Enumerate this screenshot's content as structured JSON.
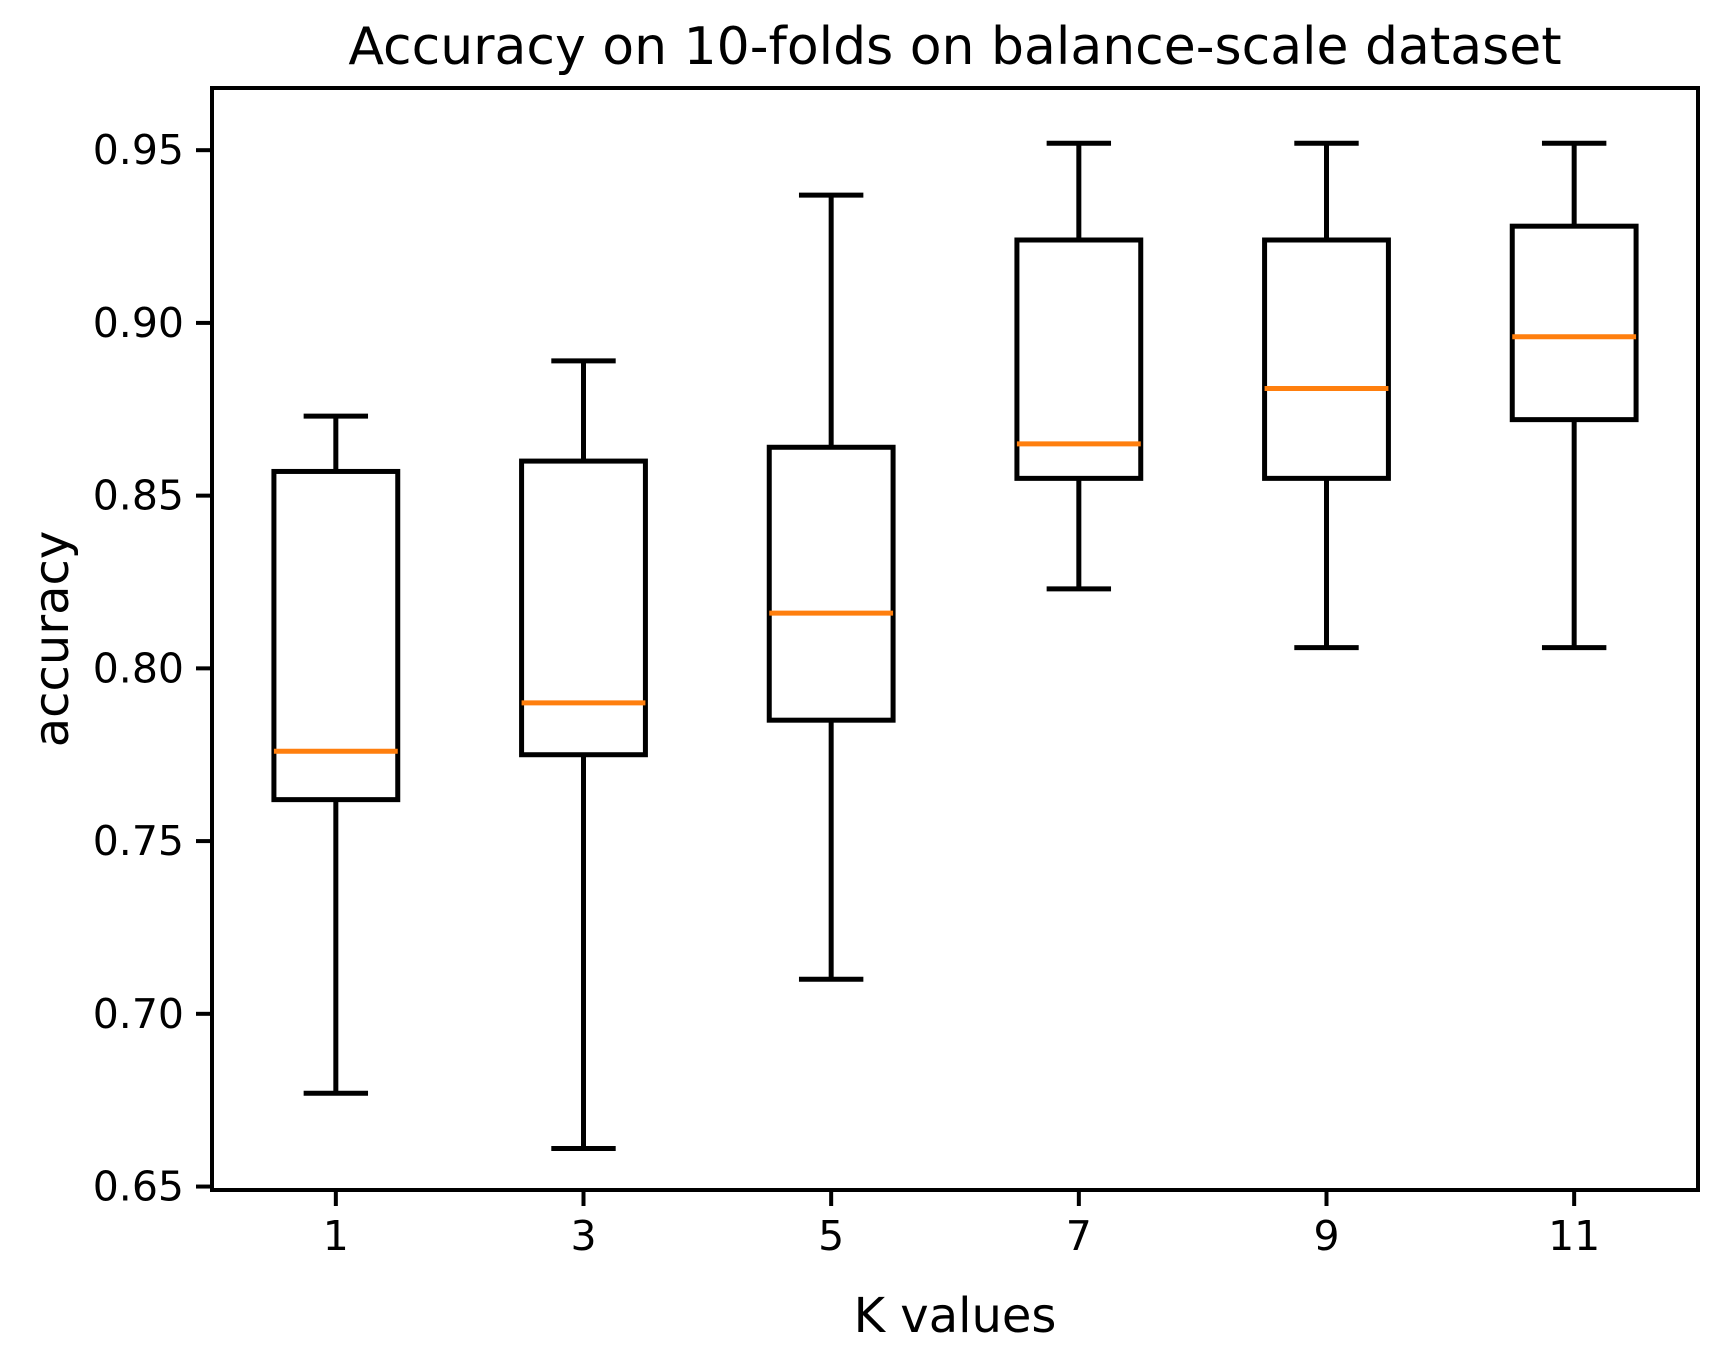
{
  "figure": {
    "background": "#ffffff"
  },
  "chart_data": {
    "type": "boxplot",
    "title": "Accuracy on 10-folds on balance-scale dataset",
    "xlabel": "K values",
    "ylabel": "accuracy",
    "categories": [
      "1",
      "3",
      "5",
      "7",
      "9",
      "11"
    ],
    "series": [
      {
        "name": "K=1",
        "whislo": 0.677,
        "q1": 0.762,
        "med": 0.776,
        "q3": 0.857,
        "whishi": 0.873
      },
      {
        "name": "K=3",
        "whislo": 0.661,
        "q1": 0.775,
        "med": 0.79,
        "q3": 0.86,
        "whishi": 0.889
      },
      {
        "name": "K=5",
        "whislo": 0.71,
        "q1": 0.785,
        "med": 0.816,
        "q3": 0.864,
        "whishi": 0.937
      },
      {
        "name": "K=7",
        "whislo": 0.823,
        "q1": 0.855,
        "med": 0.865,
        "q3": 0.924,
        "whishi": 0.952
      },
      {
        "name": "K=9",
        "whislo": 0.806,
        "q1": 0.855,
        "med": 0.881,
        "q3": 0.924,
        "whishi": 0.952
      },
      {
        "name": "K=11",
        "whislo": 0.806,
        "q1": 0.872,
        "med": 0.896,
        "q3": 0.928,
        "whishi": 0.952
      }
    ],
    "yticks": [
      0.65,
      0.7,
      0.75,
      0.8,
      0.85,
      0.9,
      0.95
    ],
    "ytick_labels": [
      "0.65",
      "0.70",
      "0.75",
      "0.80",
      "0.85",
      "0.90",
      "0.95"
    ],
    "ylim": [
      0.649,
      0.968
    ],
    "grid": false,
    "legend": null,
    "colors": {
      "box_edge": "#000000",
      "median": "#ff7f0e",
      "axes": "#000000",
      "background": "#ffffff"
    }
  }
}
